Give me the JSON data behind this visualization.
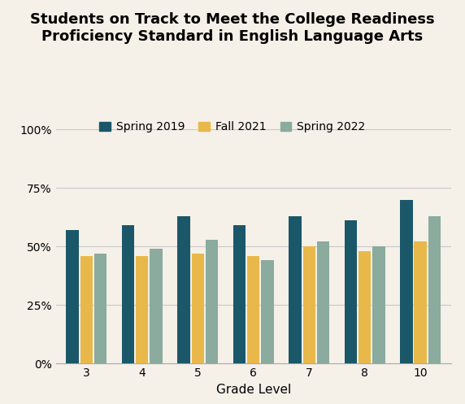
{
  "title_line1": "Students on Track to Meet the College Readiness",
  "title_line2": "Proficiency Standard in English Language Arts",
  "xlabel": "Grade Level",
  "categories": [
    "3",
    "4",
    "5",
    "6",
    "7",
    "8",
    "10"
  ],
  "series": {
    "Spring 2019": [
      0.57,
      0.59,
      0.63,
      0.59,
      0.63,
      0.61,
      0.7
    ],
    "Fall 2021": [
      0.46,
      0.46,
      0.47,
      0.46,
      0.5,
      0.48,
      0.52
    ],
    "Spring 2022": [
      0.47,
      0.49,
      0.53,
      0.44,
      0.52,
      0.5,
      0.63
    ]
  },
  "colors": {
    "Spring 2019": "#1a5769",
    "Fall 2021": "#e8b84b",
    "Spring 2022": "#8aab9e"
  },
  "ylim": [
    0,
    1.0
  ],
  "yticks": [
    0.0,
    0.25,
    0.5,
    0.75,
    1.0
  ],
  "ytick_labels": [
    "0%",
    "25%",
    "50%",
    "75%",
    "100%"
  ],
  "background_color": "#f5f0e8",
  "grid_color": "#c8c8c8",
  "title_fontsize": 13,
  "axis_fontsize": 11,
  "tick_fontsize": 10,
  "legend_fontsize": 10,
  "bar_width": 0.25,
  "bar_gap": 0.025
}
